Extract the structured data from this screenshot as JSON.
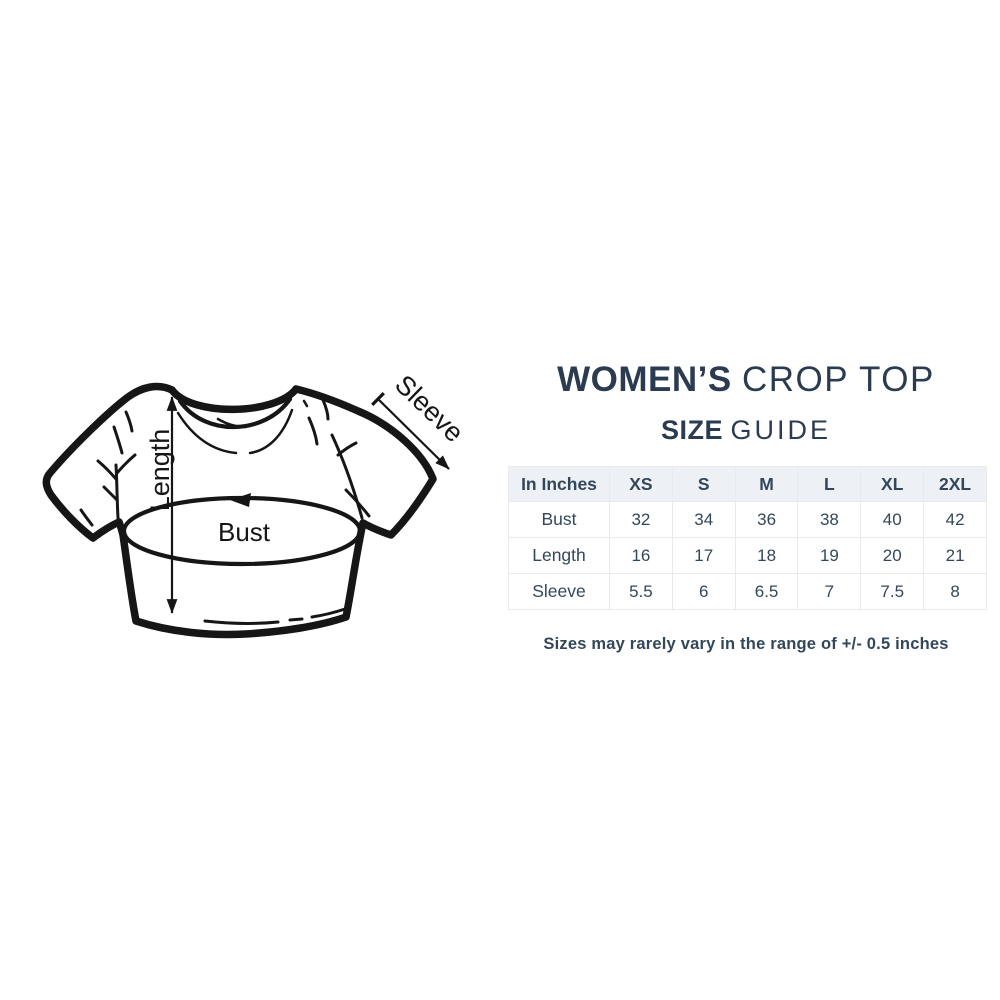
{
  "colors": {
    "title_navy": "#2b3b50",
    "text_navy": "#33475b",
    "table_header_bg": "#edf1f5",
    "table_border": "#e7ebee",
    "diagram_ink": "#161616",
    "background": "#ffffff"
  },
  "diagram": {
    "labels": {
      "length": "Length",
      "sleeve": "Sleeve",
      "bust": "Bust"
    },
    "icons": [
      "length-double-arrow",
      "sleeve-arrow-with-tick",
      "bust-tape-ellipse-arrow"
    ]
  },
  "header": {
    "title_bold": "WOMEN’S",
    "title_light": "CROP TOP",
    "subtitle_bold": "SIZE",
    "subtitle_light": "GUIDE"
  },
  "table": {
    "columns": [
      "In Inches",
      "XS",
      "S",
      "M",
      "L",
      "XL",
      "2XL"
    ],
    "rows": [
      {
        "label": "Bust",
        "values": [
          "32",
          "34",
          "36",
          "38",
          "40",
          "42"
        ]
      },
      {
        "label": "Length",
        "values": [
          "16",
          "17",
          "18",
          "19",
          "20",
          "21"
        ]
      },
      {
        "label": "Sleeve",
        "values": [
          "5.5",
          "6",
          "6.5",
          "7",
          "7.5",
          "8"
        ]
      }
    ]
  },
  "footer": {
    "note": "Sizes may rarely vary in the range of +/- 0.5 inches"
  }
}
